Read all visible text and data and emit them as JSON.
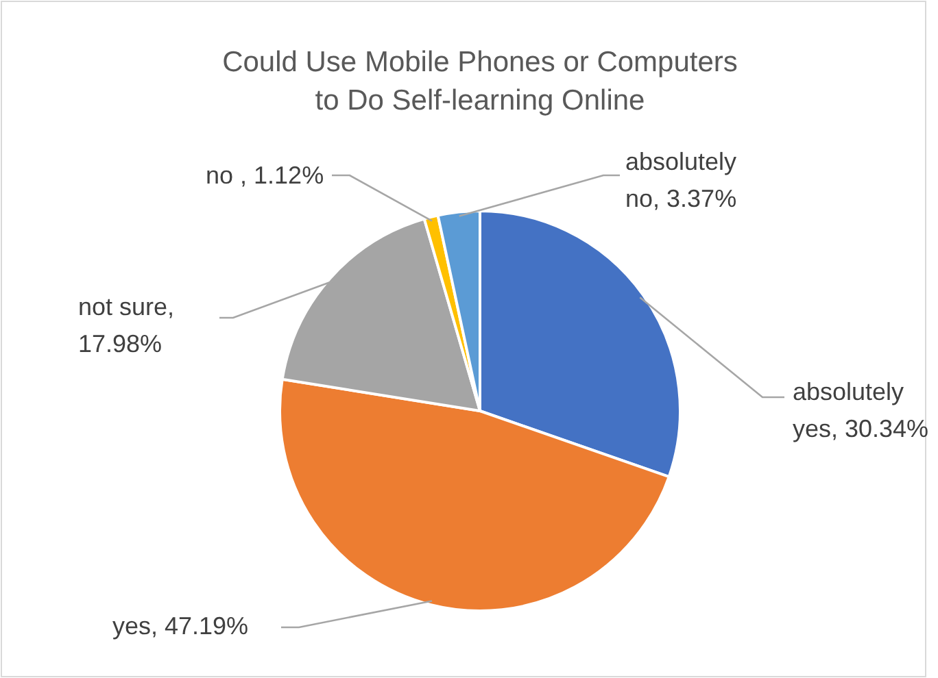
{
  "chart_data": {
    "type": "pie",
    "title": "Could Use Mobile Phones or Computers to Do Self-learning Online",
    "categories": [
      "absolutely yes",
      "yes",
      "not sure",
      "no ",
      "absolutely no"
    ],
    "values": [
      30.34,
      47.19,
      17.98,
      1.12,
      3.37
    ],
    "value_labels": [
      ", 30.34%",
      ", 47.19%",
      ", 17.98%",
      ", 1.12%",
      ", 3.37%"
    ],
    "colors": [
      "#4472c4",
      "#ed7d31",
      "#a5a5a5",
      "#ffc000",
      "#5b9bd5"
    ]
  }
}
